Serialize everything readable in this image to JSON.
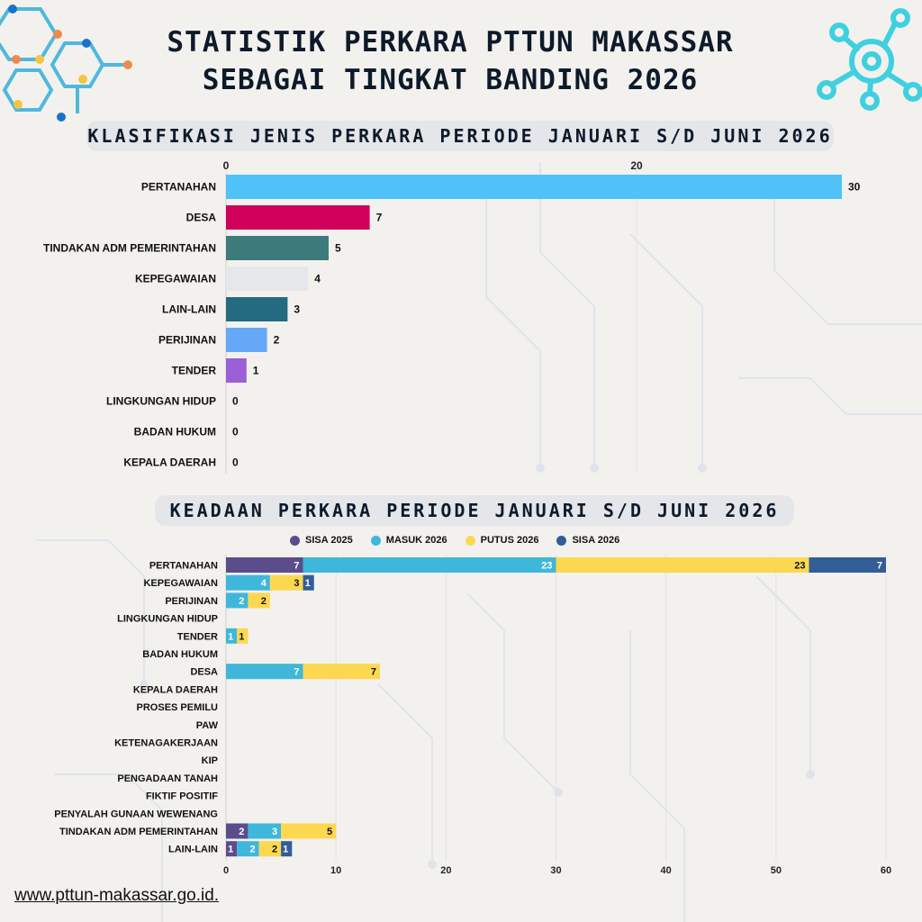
{
  "header": {
    "title_line1": "STATISTIK PERKARA PTTUN MAKASSAR",
    "title_line2": "SEBAGAI TINGKAT BANDING 2026"
  },
  "sections": {
    "first": "KLASIFIKASI JENIS PERKARA PERIODE JANUARI S/D JUNI 2026",
    "second": "KEADAAN PERKARA PERIODE JANUARI S/D JUNI 2026"
  },
  "footer": {
    "url": "www.pttun-makassar.go.id."
  },
  "colors": {
    "title": "#0d1a2a",
    "decor_teal": "#3fd0e0",
    "bar1": [
      "#4fc3f7",
      "#d1005a",
      "#3d7a7c",
      "#e6e7ea",
      "#246a80",
      "#64a8f7",
      "#9b5fd6",
      "#cccccc",
      "#cccccc",
      "#cccccc"
    ],
    "series": [
      "#5b4c8c",
      "#3fb7da",
      "#fcd851",
      "#325d96"
    ]
  },
  "chart_data": [
    {
      "type": "bar",
      "orientation": "horizontal",
      "categories": [
        "PERTANAHAN",
        "DESA",
        "TINDAKAN ADM PEMERINTAHAN",
        "KEPEGAWAIAN",
        "LAIN-LAIN",
        "PERIJINAN",
        "TENDER",
        "LINGKUNGAN HIDUP",
        "BADAN HUKUM",
        "KEPALA DAERAH"
      ],
      "values": [
        30,
        7,
        5,
        4,
        3,
        2,
        1,
        0,
        0,
        0
      ],
      "data_labels": [
        "30",
        "7",
        "5",
        "4",
        "3",
        "2",
        "1",
        "0",
        "0",
        "0"
      ],
      "xticks": [
        0,
        20
      ],
      "xtick_labels": [
        "0",
        "20"
      ],
      "xlim": [
        0,
        30
      ],
      "axis_position": "top",
      "grid": true
    },
    {
      "type": "bar",
      "orientation": "horizontal",
      "stacked": true,
      "categories": [
        "PERTANAHAN",
        "KEPEGAWAIAN",
        "PERIJINAN",
        "LINGKUNGAN HIDUP",
        "TENDER",
        "BADAN HUKUM",
        "DESA",
        "KEPALA DAERAH",
        "PROSES PEMILU",
        "PAW",
        "KETENAGAKERJAAN",
        "KIP",
        "PENGADAAN TANAH",
        "FIKTIF POSITIF",
        "PENYALAH GUNAAN WEWENANG",
        "TINDAKAN ADM PEMERINTAHAN",
        "LAIN-LAIN"
      ],
      "series": [
        {
          "name": "SISA 2025",
          "values": [
            7,
            0,
            0,
            0,
            0,
            0,
            0,
            0,
            0,
            0,
            0,
            0,
            0,
            0,
            0,
            2,
            1
          ]
        },
        {
          "name": "MASUK 2026",
          "values": [
            23,
            4,
            2,
            0,
            1,
            0,
            7,
            0,
            0,
            0,
            0,
            0,
            0,
            0,
            0,
            3,
            2
          ]
        },
        {
          "name": "PUTUS 2026",
          "values": [
            23,
            3,
            2,
            0,
            1,
            0,
            7,
            0,
            0,
            0,
            0,
            0,
            0,
            0,
            0,
            5,
            2
          ]
        },
        {
          "name": "SISA 2026",
          "values": [
            7,
            1,
            0,
            0,
            0,
            0,
            0,
            0,
            0,
            0,
            0,
            0,
            0,
            0,
            0,
            0,
            1
          ]
        }
      ],
      "xticks": [
        0,
        10,
        20,
        30,
        40,
        50,
        60
      ],
      "xtick_labels": [
        "0",
        "10",
        "20",
        "30",
        "40",
        "50",
        "60"
      ],
      "xlim": [
        0,
        60
      ],
      "axis_position": "bottom",
      "legend": "top",
      "grid": true
    }
  ]
}
